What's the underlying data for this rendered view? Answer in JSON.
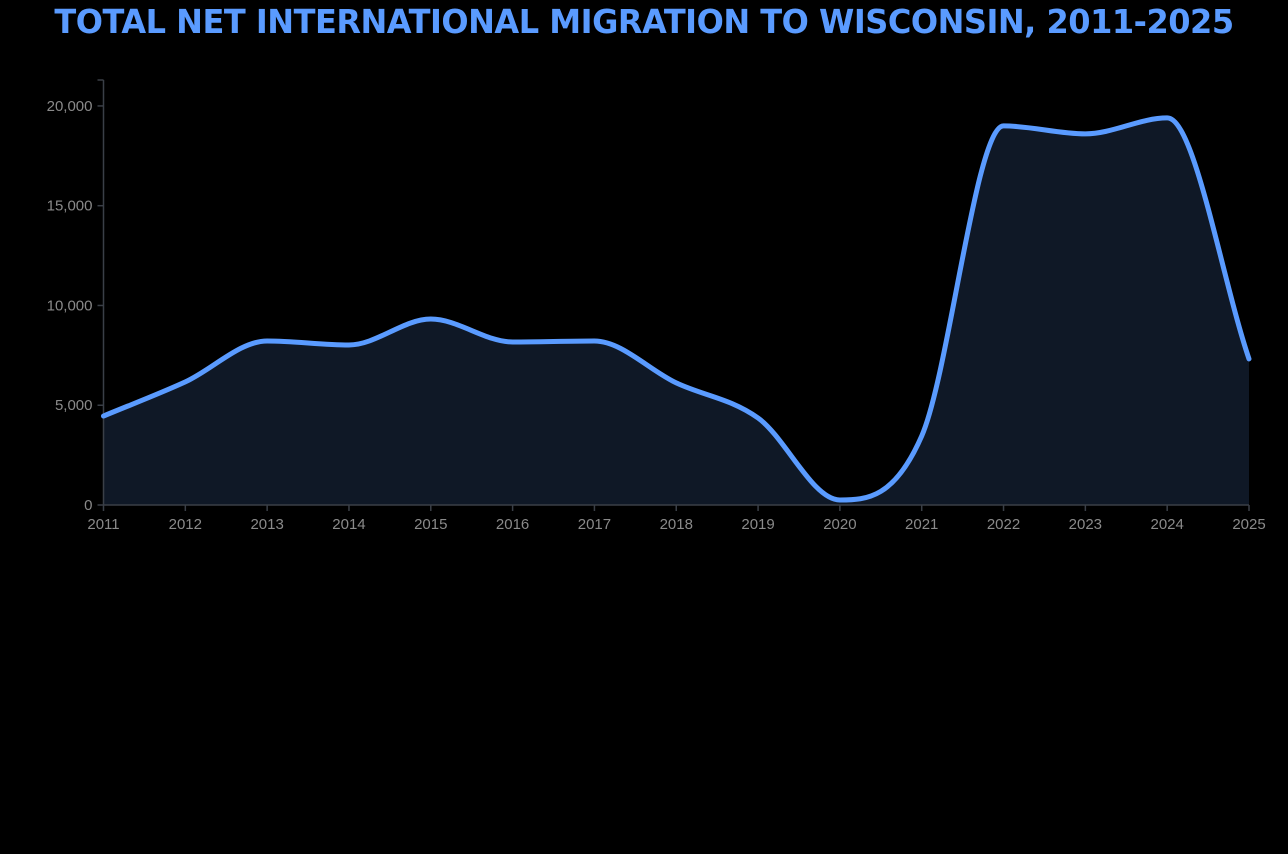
{
  "chart_data": {
    "type": "area",
    "title": "TOTAL NET INTERNATIONAL MIGRATION TO WISCONSIN, 2011-2025",
    "xlabel": "",
    "ylabel": "",
    "x": [
      2011,
      2012,
      2013,
      2014,
      2015,
      2016,
      2017,
      2018,
      2019,
      2020,
      2021,
      2022,
      2023,
      2024,
      2025
    ],
    "values": [
      4460,
      6170,
      8220,
      8020,
      9320,
      8170,
      8220,
      6120,
      4360,
      250,
      3460,
      19000,
      18600,
      19400,
      7320
    ],
    "ylim": [
      0,
      21300
    ],
    "xlim": [
      2011,
      2025
    ],
    "yticks": [
      0,
      5000,
      10000,
      15000,
      20000
    ],
    "ytick_labels": [
      "0",
      "5,000",
      "10,000",
      "15,000",
      "20,000"
    ],
    "xtick_labels": [
      "2011",
      "2012",
      "2013",
      "2014",
      "2015",
      "2016",
      "2017",
      "2018",
      "2019",
      "2020",
      "2021",
      "2022",
      "2023",
      "2024",
      "2025"
    ],
    "grid": false,
    "colors": {
      "line": "#5a9bff",
      "fill": "#0f1826",
      "axis": "#3a3f47",
      "tick_text": "#8a8a8a",
      "background": "#000000"
    }
  }
}
